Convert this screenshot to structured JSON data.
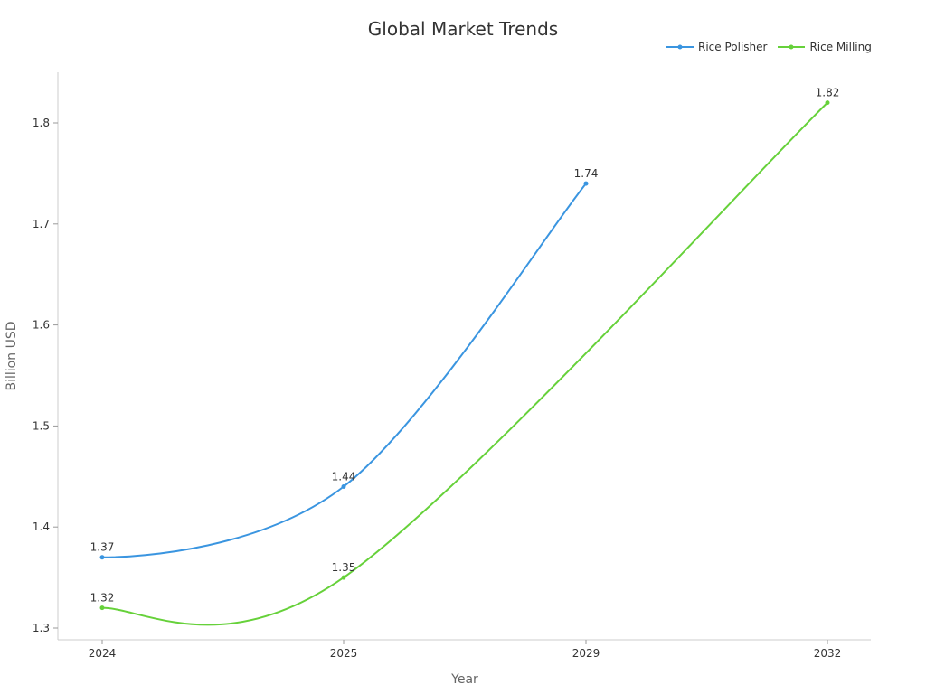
{
  "chart_data": {
    "type": "line",
    "title": "Global Market Trends",
    "xlabel": "Year",
    "ylabel": "Billion USD",
    "categories": [
      "2024",
      "2025",
      "2029",
      "2032"
    ],
    "ylim": [
      1.29,
      1.85
    ],
    "yticks": [
      "1.3",
      "1.4",
      "1.5",
      "1.6",
      "1.7",
      "1.8"
    ],
    "grid": false,
    "legend_position": "top-right",
    "series": [
      {
        "name": "Rice Polisher",
        "color": "#3a95e0",
        "values": [
          1.37,
          1.44,
          1.74,
          null
        ],
        "labels": [
          "1.37",
          "1.44",
          "1.74"
        ]
      },
      {
        "name": "Rice Milling",
        "color": "#66d13a",
        "values": [
          1.32,
          1.35,
          null,
          1.82
        ],
        "labels": [
          "1.32",
          "1.35",
          "1.82"
        ]
      }
    ]
  }
}
